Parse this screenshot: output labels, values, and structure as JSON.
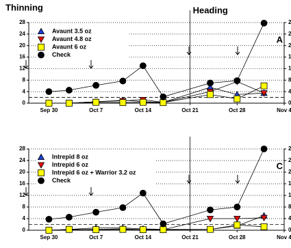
{
  "chart_data": [
    {
      "type": "line",
      "title": "Thinning",
      "subtitle": "Heading",
      "annotation": "A",
      "x": [
        0,
        3,
        7,
        11,
        14,
        17,
        24,
        28,
        32
      ],
      "xlim": [
        -3,
        35
      ],
      "xticks": [
        {
          "value": 0,
          "label": "Sep 30"
        },
        {
          "value": 7,
          "label": "Oct 7"
        },
        {
          "value": 14,
          "label": "Oct 14"
        },
        {
          "value": 21,
          "label": "Oct 21"
        },
        {
          "value": 28,
          "label": "Oct 28"
        },
        {
          "value": 35,
          "label": "Nov 4"
        }
      ],
      "ylim": [
        0,
        28
      ],
      "yticks": [
        0,
        4,
        8,
        12,
        16,
        20,
        24,
        28
      ],
      "grid": true,
      "reference_line": 2,
      "vline": 21,
      "series": [
        {
          "name": "Avaunt 3.5 oz",
          "color": "#1f3fd0",
          "marker": "triangle",
          "values": [
            0,
            0,
            0.5,
            1,
            0.5,
            0.3,
            5.5,
            3,
            3.5
          ]
        },
        {
          "name": "Avaunt 4.8 oz",
          "color": "#e01010",
          "marker": "triangle-down",
          "values": [
            0,
            0,
            0.5,
            0.8,
            1.2,
            0.3,
            4,
            7.5,
            3.5
          ]
        },
        {
          "name": "Avaunt 6 oz",
          "color": "#ffff00",
          "marker": "square",
          "values": [
            0,
            0,
            0.3,
            0.2,
            0.3,
            0.2,
            3,
            1.5,
            6
          ]
        },
        {
          "name": "Check",
          "color": "#000000",
          "marker": "circle",
          "values": [
            4,
            4.5,
            6.2,
            7.7,
            13,
            2.2,
            7,
            7.8,
            27.8
          ]
        }
      ]
    },
    {
      "type": "line",
      "annotation": "C",
      "x": [
        0,
        3,
        7,
        11,
        14,
        17,
        24,
        28,
        32
      ],
      "xlim": [
        -3,
        35
      ],
      "xticks": [
        {
          "value": 0,
          "label": "Sep 30"
        },
        {
          "value": 7,
          "label": "Oct 7"
        },
        {
          "value": 14,
          "label": "Oct 14"
        },
        {
          "value": 21,
          "label": "Oct 21"
        },
        {
          "value": 28,
          "label": "Oct 28"
        },
        {
          "value": 35,
          "label": "Nov 4"
        }
      ],
      "ylim": [
        0,
        28
      ],
      "yticks": [
        0,
        4,
        8,
        12,
        16,
        20,
        24,
        28
      ],
      "grid": true,
      "reference_line": 2,
      "vline": 21,
      "series": [
        {
          "name": "Intrepid 8 oz",
          "color": "#1f3fd0",
          "marker": "triangle",
          "values": [
            0,
            0.3,
            0.8,
            0.8,
            0.5,
            0.3,
            0.3,
            1.5,
            5
          ]
        },
        {
          "name": "Intrepid 6 oz",
          "color": "#e01010",
          "marker": "triangle-down",
          "values": [
            0,
            0.2,
            0.3,
            0.5,
            0.2,
            0.2,
            4,
            4,
            4.3
          ]
        },
        {
          "name": "Intrepid 6 oz + Warrior 3.2 oz",
          "color": "#ffff00",
          "marker": "square",
          "values": [
            0,
            0.3,
            0.2,
            0.3,
            0.2,
            0.2,
            0.3,
            1.8,
            1.2
          ]
        },
        {
          "name": "Check",
          "color": "#000000",
          "marker": "circle",
          "values": [
            3.8,
            4.5,
            6.2,
            7.8,
            12.8,
            2.2,
            7,
            8,
            28
          ]
        }
      ]
    }
  ]
}
